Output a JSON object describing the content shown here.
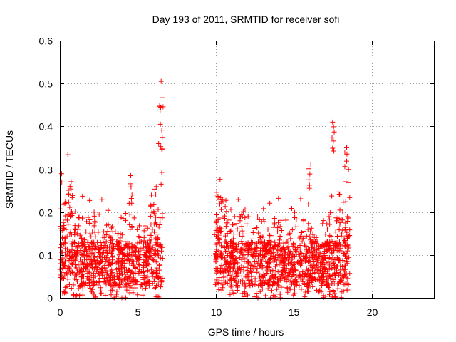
{
  "chart_data": {
    "type": "scatter",
    "title": "Day 193 of 2011, SRMTID for receiver sofi",
    "xlabel": "GPS time / hours",
    "ylabel": "SRMTID / TECUs",
    "xlim": [
      0,
      24
    ],
    "ylim": [
      0,
      0.6
    ],
    "xticks": [
      0,
      5,
      10,
      15,
      20
    ],
    "yticks": [
      0,
      0.1,
      0.2,
      0.3,
      0.4,
      0.5,
      0.6
    ],
    "grid": true,
    "marker": "+",
    "marker_color": "#ff0000",
    "series": [
      {
        "name": "SRMTID",
        "segments": [
          {
            "x_start": 0.0,
            "x_end": 6.6,
            "y_min": 0.0,
            "y_typical": 0.08,
            "y_max": 0.505
          },
          {
            "x_start": 9.9,
            "x_end": 18.6,
            "y_min": 0.0,
            "y_typical": 0.08,
            "y_max": 0.415
          }
        ],
        "highlights": [
          {
            "x": 0.65,
            "y": 0.26
          },
          {
            "x": 4.55,
            "y": 0.285
          },
          {
            "x": 6.5,
            "y": 0.505
          },
          {
            "x": 6.45,
            "y": 0.405
          },
          {
            "x": 16.1,
            "y": 0.31
          },
          {
            "x": 17.5,
            "y": 0.41
          },
          {
            "x": 18.4,
            "y": 0.35
          }
        ]
      }
    ]
  }
}
